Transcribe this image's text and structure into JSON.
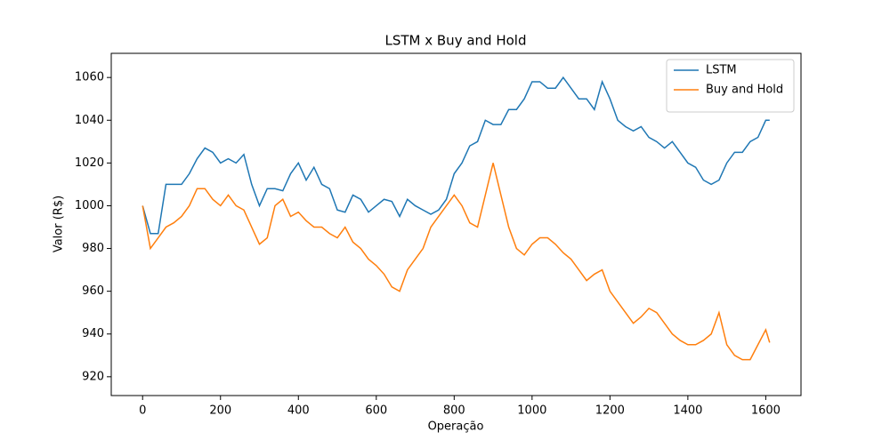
{
  "chart_data": {
    "type": "line",
    "title": "LSTM x Buy and Hold",
    "x_label": "Operação",
    "y_label": "Valor (R$)",
    "x": [
      0,
      20,
      40,
      60,
      80,
      100,
      120,
      140,
      160,
      180,
      200,
      220,
      240,
      260,
      280,
      300,
      320,
      340,
      360,
      380,
      400,
      420,
      440,
      460,
      480,
      500,
      520,
      540,
      560,
      580,
      600,
      620,
      640,
      660,
      680,
      700,
      720,
      740,
      760,
      780,
      800,
      820,
      840,
      860,
      880,
      900,
      920,
      940,
      960,
      980,
      1000,
      1020,
      1040,
      1060,
      1080,
      1100,
      1120,
      1140,
      1160,
      1180,
      1200,
      1220,
      1240,
      1260,
      1280,
      1300,
      1320,
      1340,
      1360,
      1380,
      1400,
      1420,
      1440,
      1460,
      1480,
      1500,
      1520,
      1540,
      1560,
      1580,
      1600,
      1610
    ],
    "series": [
      {
        "name": "LSTM",
        "color": "#1f77b4",
        "values": [
          1000,
          987,
          987,
          1010,
          1010,
          1010,
          1015,
          1022,
          1027,
          1025,
          1020,
          1022,
          1020,
          1024,
          1010,
          1000,
          1008,
          1008,
          1007,
          1015,
          1020,
          1012,
          1018,
          1010,
          1008,
          998,
          997,
          1005,
          1003,
          997,
          1000,
          1003,
          1002,
          995,
          1003,
          1000,
          998,
          996,
          998,
          1003,
          1015,
          1020,
          1028,
          1030,
          1040,
          1038,
          1038,
          1045,
          1045,
          1050,
          1058,
          1058,
          1055,
          1055,
          1060,
          1055,
          1050,
          1050,
          1045,
          1058,
          1050,
          1040,
          1037,
          1035,
          1037,
          1032,
          1030,
          1027,
          1030,
          1025,
          1020,
          1018,
          1012,
          1010,
          1012,
          1020,
          1025,
          1025,
          1030,
          1032,
          1040,
          1040
        ]
      },
      {
        "name": "Buy and Hold",
        "color": "#ff7f0e",
        "values": [
          1000,
          980,
          985,
          990,
          992,
          995,
          1000,
          1008,
          1008,
          1003,
          1000,
          1005,
          1000,
          998,
          990,
          982,
          985,
          1000,
          1003,
          995,
          997,
          993,
          990,
          990,
          987,
          985,
          990,
          983,
          980,
          975,
          972,
          968,
          962,
          960,
          970,
          975,
          980,
          990,
          995,
          1000,
          1005,
          1000,
          992,
          990,
          1005,
          1020,
          1005,
          990,
          980,
          977,
          982,
          985,
          985,
          982,
          978,
          975,
          970,
          965,
          968,
          970,
          960,
          955,
          950,
          945,
          948,
          952,
          950,
          945,
          940,
          937,
          935,
          935,
          937,
          940,
          950,
          935,
          930,
          928,
          928,
          935,
          942,
          936
        ]
      }
    ],
    "xlim": [
      -80.5,
      1690.5
    ],
    "xticks": [
      0,
      200,
      400,
      600,
      800,
      1000,
      1200,
      1400,
      1600
    ],
    "ylim": [
      911.2,
      1071.3
    ],
    "yticks": [
      920,
      940,
      960,
      980,
      1000,
      1020,
      1040,
      1060
    ],
    "legend": "upper right",
    "grid": false
  }
}
